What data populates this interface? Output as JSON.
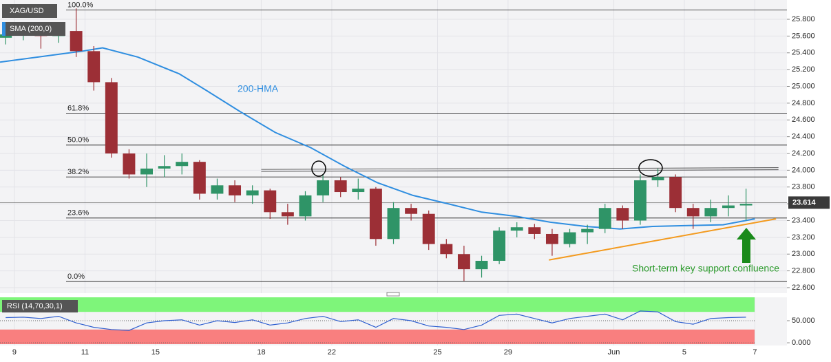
{
  "chart_data": {
    "type": "candlestick",
    "symbol": "XAG/USD",
    "indicator": "SMA (200,0)",
    "xlim": [
      -0.41,
      21.91
    ],
    "ylim": [
      22.534,
      26.03
    ],
    "xticks": [
      {
        "value": 0,
        "label": "9"
      },
      {
        "value": 2,
        "label": "11"
      },
      {
        "value": 4,
        "label": "15"
      },
      {
        "value": 7,
        "label": "18"
      },
      {
        "value": 9,
        "label": "22"
      },
      {
        "value": 12,
        "label": "25"
      },
      {
        "value": 14,
        "label": "29"
      },
      {
        "value": 17,
        "label": "Jun"
      },
      {
        "value": 19,
        "label": "5"
      },
      {
        "value": 21,
        "label": "7"
      }
    ],
    "yticks": [
      {
        "value": 22.6,
        "label": "22.600"
      },
      {
        "value": 22.8,
        "label": "22.800"
      },
      {
        "value": 23.0,
        "label": "23.000"
      },
      {
        "value": 23.2,
        "label": "23.200"
      },
      {
        "value": 23.4,
        "label": "23.400"
      },
      {
        "value": 23.6,
        "label": "23.600"
      },
      {
        "value": 23.8,
        "label": "23.800"
      },
      {
        "value": 24.0,
        "label": "24.000"
      },
      {
        "value": 24.2,
        "label": "24.200"
      },
      {
        "value": 24.4,
        "label": "24.400"
      },
      {
        "value": 24.6,
        "label": "24.600"
      },
      {
        "value": 24.8,
        "label": "24.800"
      },
      {
        "value": 25.0,
        "label": "25.000"
      },
      {
        "value": 25.2,
        "label": "25.200"
      },
      {
        "value": 25.4,
        "label": "25.400"
      },
      {
        "value": 25.6,
        "label": "25.600"
      },
      {
        "value": 25.8,
        "label": "25.800"
      }
    ],
    "grid": true,
    "up_color": "#2f9467",
    "down_color": "#9c2f36",
    "x": [
      -0.25,
      0.25,
      0.75,
      1.25,
      1.75,
      2.25,
      2.75,
      3.25,
      3.75,
      4.25,
      4.75,
      5.25,
      5.75,
      6.25,
      6.75,
      7.25,
      7.75,
      8.25,
      8.75,
      9.25,
      9.75,
      10.25,
      10.75,
      11.25,
      11.75,
      12.25,
      12.75,
      13.25,
      13.75,
      14.25,
      14.75,
      15.25,
      15.75,
      16.25,
      16.75,
      17.25,
      17.75,
      18.25,
      18.75,
      19.25,
      19.75,
      20.25,
      20.75
    ],
    "ohlc": [
      [
        25.58,
        25.72,
        25.5,
        25.62
      ],
      [
        25.62,
        25.75,
        25.55,
        25.68
      ],
      [
        25.68,
        25.74,
        25.45,
        25.6
      ],
      [
        25.6,
        25.72,
        25.52,
        25.66
      ],
      [
        25.66,
        25.93,
        25.35,
        25.42
      ],
      [
        25.42,
        25.48,
        24.95,
        25.05
      ],
      [
        25.05,
        25.1,
        24.15,
        24.2
      ],
      [
        24.2,
        24.25,
        23.9,
        23.95
      ],
      [
        23.95,
        24.2,
        23.8,
        24.02
      ],
      [
        24.02,
        24.18,
        23.92,
        24.05
      ],
      [
        24.05,
        24.2,
        23.95,
        24.1
      ],
      [
        24.1,
        24.12,
        23.65,
        23.72
      ],
      [
        23.72,
        23.9,
        23.65,
        23.82
      ],
      [
        23.82,
        23.88,
        23.62,
        23.7
      ],
      [
        23.7,
        23.82,
        23.6,
        23.76
      ],
      [
        23.76,
        23.78,
        23.42,
        23.5
      ],
      [
        23.5,
        23.6,
        23.35,
        23.45
      ],
      [
        23.45,
        23.75,
        23.4,
        23.7
      ],
      [
        23.7,
        23.95,
        23.62,
        23.88
      ],
      [
        23.88,
        23.92,
        23.68,
        23.74
      ],
      [
        23.74,
        23.9,
        23.65,
        23.78
      ],
      [
        23.78,
        23.8,
        23.1,
        23.18
      ],
      [
        23.18,
        23.62,
        23.12,
        23.55
      ],
      [
        23.55,
        23.6,
        23.4,
        23.48
      ],
      [
        23.48,
        23.52,
        23.05,
        23.12
      ],
      [
        23.12,
        23.18,
        22.95,
        23.0
      ],
      [
        23.0,
        23.1,
        22.68,
        22.82
      ],
      [
        22.82,
        22.98,
        22.72,
        22.92
      ],
      [
        22.92,
        23.32,
        22.88,
        23.28
      ],
      [
        23.28,
        23.38,
        23.2,
        23.32
      ],
      [
        23.32,
        23.36,
        23.18,
        23.24
      ],
      [
        23.24,
        23.3,
        22.98,
        23.12
      ],
      [
        23.12,
        23.3,
        23.08,
        23.26
      ],
      [
        23.26,
        23.35,
        23.12,
        23.3
      ],
      [
        23.3,
        23.6,
        23.25,
        23.55
      ],
      [
        23.55,
        23.58,
        23.3,
        23.4
      ],
      [
        23.4,
        23.95,
        23.35,
        23.88
      ],
      [
        23.88,
        24.02,
        23.8,
        23.92
      ],
      [
        23.92,
        23.95,
        23.5,
        23.55
      ],
      [
        23.55,
        23.6,
        23.3,
        23.45
      ],
      [
        23.45,
        23.65,
        23.38,
        23.55
      ],
      [
        23.55,
        23.7,
        23.45,
        23.58
      ],
      [
        23.58,
        23.78,
        23.4,
        23.6
      ]
    ],
    "hma": {
      "name": "200-HMA",
      "color": "#2f8ee0",
      "x": [
        -0.41,
        1.93,
        2.5,
        3.5,
        4.67,
        5.45,
        6.4,
        7.4,
        8.4,
        9.35,
        10.3,
        11.3,
        12.3,
        13.26,
        14.24,
        15.2,
        16.2,
        17.17,
        18.1,
        19.1,
        20.1,
        21.0
      ],
      "values": [
        25.29,
        25.42,
        25.46,
        25.35,
        25.15,
        24.95,
        24.7,
        24.45,
        24.27,
        24.05,
        23.85,
        23.7,
        23.6,
        23.5,
        23.45,
        23.38,
        23.33,
        23.3,
        23.33,
        23.34,
        23.35,
        23.42
      ]
    },
    "fib_levels": [
      {
        "label": "100.0%",
        "value": 25.91
      },
      {
        "label": "61.8%",
        "value": 24.68
      },
      {
        "label": "50.0%",
        "value": 24.3
      },
      {
        "label": "38.2%",
        "value": 23.92
      },
      {
        "label": "23.6%",
        "value": 23.43
      },
      {
        "label": "0.0%",
        "value": 22.674
      }
    ],
    "resistance": {
      "x": [
        7.0,
        21.67
      ],
      "values": [
        24.01,
        24.03
      ]
    },
    "trendline": {
      "color": "#f39a1e",
      "x": [
        15.16,
        21.6
      ],
      "values": [
        22.93,
        23.42
      ]
    },
    "last_price": {
      "value": 23.614,
      "label": "23.614"
    },
    "annotation": "Short-term key support confluence",
    "rsi": {
      "name": "RSI (14,70,30,1)",
      "color": "#2f5fd0",
      "ylim": [
        -3,
        103
      ],
      "yticks": [
        {
          "value": 0,
          "label": "0.000"
        },
        {
          "value": 50,
          "label": "50.000"
        }
      ],
      "overbought": 70,
      "oversold": 30,
      "values": [
        57,
        58,
        55,
        60,
        45,
        35,
        30,
        28,
        45,
        50,
        52,
        40,
        50,
        46,
        52,
        40,
        45,
        55,
        60,
        48,
        52,
        35,
        55,
        50,
        38,
        35,
        30,
        40,
        62,
        65,
        55,
        45,
        55,
        60,
        65,
        52,
        72,
        70,
        48,
        42,
        55,
        57,
        58
      ]
    }
  }
}
